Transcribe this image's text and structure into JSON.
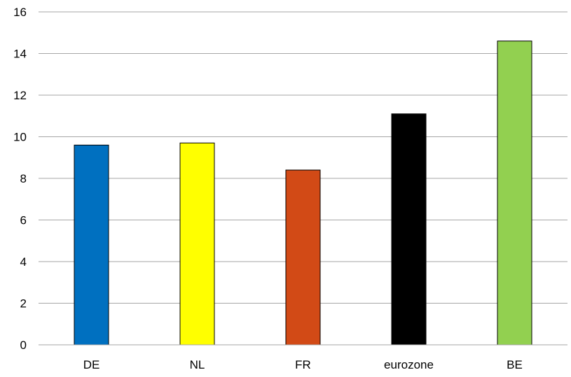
{
  "chart_data": {
    "type": "bar",
    "categories": [
      "DE",
      "NL",
      "FR",
      "eurozone",
      "BE"
    ],
    "values": [
      9.6,
      9.7,
      8.4,
      11.1,
      14.6
    ],
    "colors": [
      "#0070C0",
      "#FFFF00",
      "#D24A16",
      "#000000",
      "#92D050"
    ],
    "y_ticks": [
      "0",
      "2",
      "4",
      "6",
      "8",
      "10",
      "12",
      "14",
      "16"
    ],
    "ylim": [
      0,
      16
    ],
    "y_step": 2,
    "grid": true,
    "legend": false
  }
}
